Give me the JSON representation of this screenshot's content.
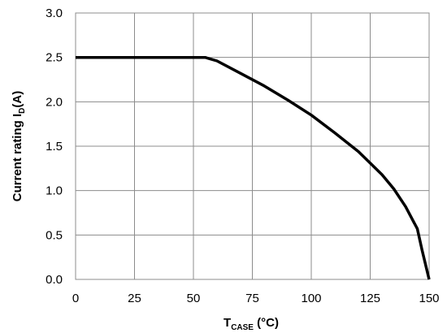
{
  "chart_data": {
    "type": "line",
    "title": "",
    "xlabel": {
      "main": "T",
      "sub": "CASE",
      "rest": " (°C)"
    },
    "ylabel": {
      "main": "Current rating I",
      "sub": "D",
      "rest": "(A)"
    },
    "xlim": [
      0,
      150
    ],
    "ylim": [
      0,
      3.0
    ],
    "x_ticks": [
      0,
      25,
      50,
      75,
      100,
      125,
      150
    ],
    "y_ticks": [
      0.0,
      0.5,
      1.0,
      1.5,
      2.0,
      2.5,
      3.0
    ],
    "x_tick_labels": [
      "0",
      "25",
      "50",
      "75",
      "100",
      "125",
      "150"
    ],
    "y_tick_labels": [
      "0.0",
      "0.5",
      "1.0",
      "1.5",
      "2.0",
      "2.5",
      "3.0"
    ],
    "grid": true,
    "series": [
      {
        "x": [
          0,
          55,
          60,
          70,
          80,
          90,
          100,
          110,
          120,
          130,
          135,
          140,
          145,
          147,
          150
        ],
        "y": [
          2.5,
          2.5,
          2.46,
          2.32,
          2.18,
          2.02,
          1.85,
          1.65,
          1.44,
          1.18,
          1.02,
          0.82,
          0.57,
          0.33,
          0.0
        ],
        "color": "#000000"
      }
    ]
  }
}
